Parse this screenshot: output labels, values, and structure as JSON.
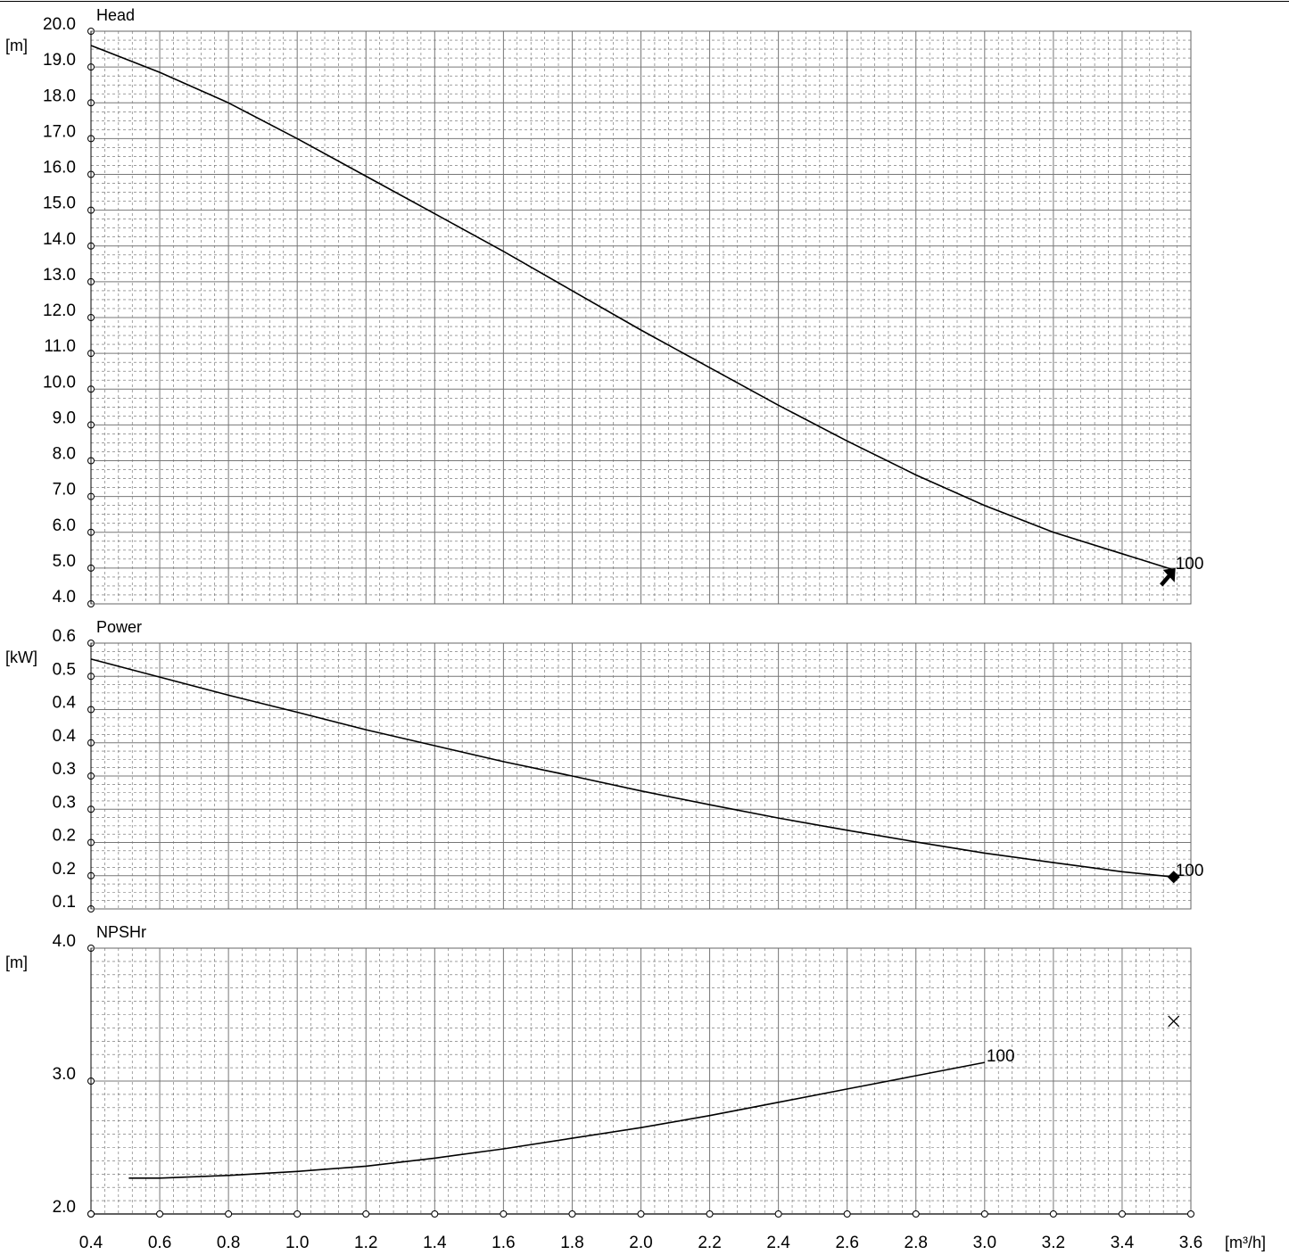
{
  "chart_data": [
    {
      "type": "line",
      "title": "Head",
      "ylabel": "[m]",
      "xlim": [
        0.4,
        3.6
      ],
      "ylim": [
        4.0,
        20.0
      ],
      "grid": true,
      "y_ticks": [
        "20.0",
        "19.0",
        "18.0",
        "17.0",
        "16.0",
        "15.0",
        "14.0",
        "13.0",
        "12.0",
        "11.0",
        "10.0",
        "9.0",
        "8.0",
        "7.0",
        "6.0",
        "5.0",
        "4.0"
      ],
      "series": [
        {
          "name": "100",
          "x": [
            0.4,
            0.6,
            0.8,
            1.0,
            1.2,
            1.4,
            1.6,
            1.8,
            2.0,
            2.2,
            2.4,
            2.6,
            2.8,
            3.0,
            3.2,
            3.4,
            3.55
          ],
          "values": [
            19.6,
            18.85,
            18.0,
            17.0,
            15.95,
            14.9,
            13.85,
            12.75,
            11.65,
            10.6,
            9.55,
            8.55,
            7.6,
            6.75,
            6.0,
            5.4,
            4.95
          ]
        }
      ],
      "end_marker": "arrow"
    },
    {
      "type": "line",
      "title": "Power",
      "ylabel": "[kW]",
      "xlim": [
        0.4,
        3.6
      ],
      "ylim": [
        0.1,
        0.6
      ],
      "grid": true,
      "y_ticks": [
        "0.6",
        "0.5",
        "0.4",
        "0.4",
        "0.3",
        "0.3",
        "0.2",
        "0.2",
        "0.1"
      ],
      "series": [
        {
          "name": "100",
          "x": [
            0.4,
            0.6,
            0.8,
            1.0,
            1.2,
            1.4,
            1.6,
            1.8,
            2.0,
            2.2,
            2.4,
            2.6,
            2.8,
            3.0,
            3.2,
            3.4,
            3.55
          ],
          "values": [
            0.57,
            0.536,
            0.502,
            0.47,
            0.437,
            0.407,
            0.377,
            0.35,
            0.322,
            0.296,
            0.271,
            0.248,
            0.226,
            0.205,
            0.187,
            0.17,
            0.16
          ]
        }
      ],
      "end_marker": "diamond"
    },
    {
      "type": "line",
      "title": "NPSHr",
      "ylabel": "[m]",
      "xlabel": "[m³/h]",
      "xlim": [
        0.4,
        3.6
      ],
      "ylim": [
        2.0,
        4.0
      ],
      "grid": true,
      "y_ticks": [
        "4.0",
        "3.0",
        "2.0"
      ],
      "x_ticks": [
        "0.4",
        "0.6",
        "0.8",
        "1.0",
        "1.2",
        "1.4",
        "1.6",
        "1.8",
        "2.0",
        "2.2",
        "2.4",
        "2.6",
        "2.8",
        "3.0",
        "3.2",
        "3.4",
        "3.6"
      ],
      "series": [
        {
          "name": "100",
          "x": [
            0.51,
            0.6,
            0.8,
            1.0,
            1.2,
            1.4,
            1.6,
            1.8,
            2.0,
            2.2,
            2.4,
            2.6,
            2.8,
            3.0
          ],
          "values": [
            2.27,
            2.27,
            2.29,
            2.32,
            2.36,
            2.42,
            2.49,
            2.57,
            2.65,
            2.74,
            2.84,
            2.94,
            3.04,
            3.14
          ]
        }
      ],
      "cross_marker": {
        "x": 3.55,
        "y": 3.45
      }
    }
  ]
}
